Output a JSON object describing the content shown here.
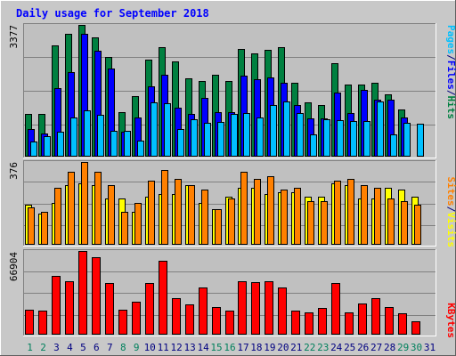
{
  "chart_data": [
    {
      "type": "bar",
      "title": "Daily usage for September 2018",
      "categories": [
        "1",
        "2",
        "3",
        "4",
        "5",
        "6",
        "7",
        "8",
        "9",
        "10",
        "11",
        "12",
        "13",
        "14",
        "15",
        "16",
        "17",
        "18",
        "19",
        "20",
        "21",
        "22",
        "23",
        "24",
        "25",
        "26",
        "27",
        "28",
        "29",
        "30",
        "31"
      ],
      "weekend_categories": [
        "1",
        "2",
        "8",
        "9",
        "15",
        "16",
        "22",
        "23",
        "29",
        "30"
      ],
      "ymax_label": "3377",
      "ylim": [
        0,
        3377
      ],
      "right_labels": [
        "Pages",
        "/",
        "Files",
        "/",
        "Hits"
      ],
      "series": [
        {
          "name": "Hits",
          "color": "#008040",
          "values": [
            1100,
            1100,
            2850,
            3140,
            3377,
            3050,
            2550,
            1150,
            1550,
            2480,
            2800,
            2450,
            2000,
            1950,
            2100,
            1950,
            2770,
            2650,
            2740,
            2800,
            1900,
            1400,
            1320,
            2400,
            1850,
            1850,
            1900,
            1600,
            1220,
            0,
            0
          ]
        },
        {
          "name": "Files",
          "color": "#0000ff",
          "values": [
            700,
            600,
            1750,
            2170,
            3140,
            2720,
            2270,
            650,
            1000,
            1810,
            2100,
            1250,
            1100,
            1500,
            1150,
            1150,
            2080,
            1980,
            2030,
            1900,
            1330,
            980,
            980,
            1650,
            1120,
            1720,
            1450,
            1450,
            1010,
            0,
            0
          ]
        },
        {
          "name": "Pages",
          "color": "#00c0ff",
          "values": [
            380,
            520,
            640,
            1000,
            1180,
            1080,
            660,
            660,
            420,
            1390,
            1360,
            700,
            960,
            860,
            880,
            1100,
            1110,
            1010,
            1330,
            1410,
            1110,
            560,
            960,
            940,
            920,
            920,
            1420,
            560,
            860,
            840,
            0
          ]
        }
      ]
    },
    {
      "type": "bar",
      "ymax_label": "376",
      "ylim": [
        0,
        376
      ],
      "right_labels": [
        "Sites",
        "/",
        "Visits"
      ],
      "series": [
        {
          "name": "Visits",
          "color": "#ffff00",
          "values": [
            180,
            140,
            190,
            270,
            280,
            270,
            210,
            210,
            150,
            220,
            230,
            230,
            270,
            190,
            160,
            220,
            260,
            260,
            230,
            240,
            240,
            220,
            220,
            280,
            270,
            210,
            210,
            260,
            250,
            220,
            0
          ]
        },
        {
          "name": "Sites",
          "color": "#ff8000",
          "values": [
            170,
            150,
            260,
            330,
            376,
            330,
            270,
            150,
            190,
            290,
            340,
            300,
            270,
            250,
            160,
            210,
            330,
            300,
            310,
            250,
            260,
            200,
            200,
            290,
            300,
            270,
            260,
            210,
            200,
            180,
            0
          ]
        }
      ]
    },
    {
      "type": "bar",
      "ymax_label": "66904",
      "ylim": [
        0,
        66904
      ],
      "right_labels": [
        "KBytes"
      ],
      "series": [
        {
          "name": "KBytes",
          "color": "#ff0000",
          "values": [
            20000,
            19000,
            47000,
            43000,
            67000,
            62000,
            41000,
            20000,
            26000,
            41000,
            59000,
            29000,
            24000,
            38000,
            22000,
            19000,
            43000,
            42000,
            43000,
            38000,
            19000,
            18000,
            21000,
            41000,
            18000,
            25000,
            29000,
            22000,
            17000,
            11000,
            0
          ]
        }
      ]
    }
  ],
  "colors": {
    "frame_bg": "#c8c8c8",
    "plot_bg": "#c0c0c0",
    "title": "#0000ff",
    "axis_text": "#000000",
    "weekend_text": "#00805c",
    "weekday_text": "#000080"
  }
}
